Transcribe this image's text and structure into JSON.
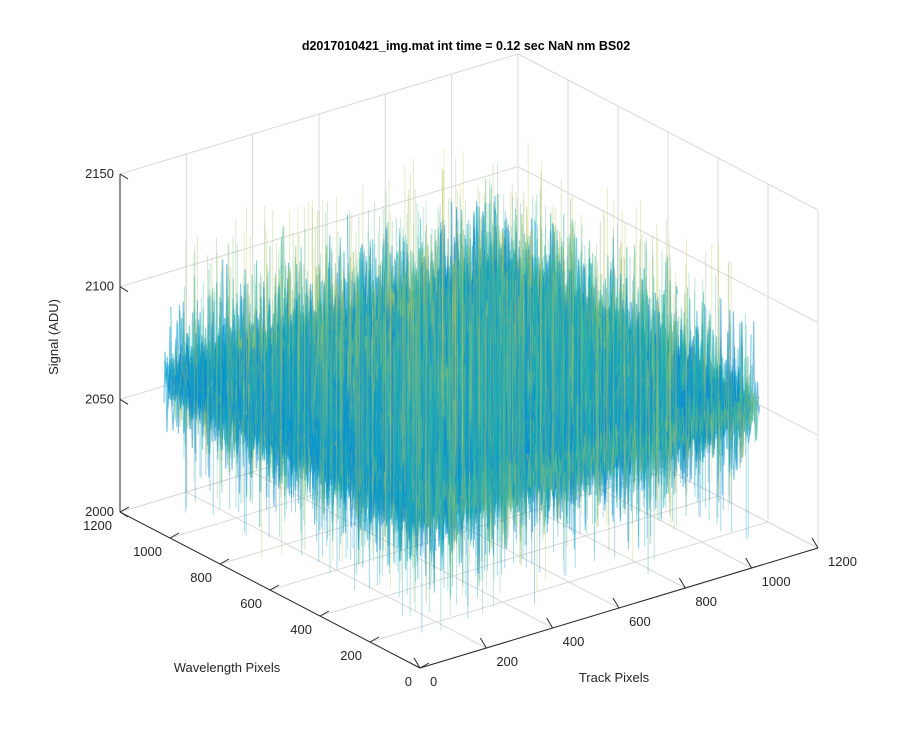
{
  "chart_data": {
    "type": "surface",
    "title": "d2017010421_img.mat int time = 0.12 sec  NaN nm BS02",
    "xlabel": "Track Pixels",
    "ylabel": "Wavelength Pixels",
    "zlabel": "Signal (ADU)",
    "xlim": [
      0,
      1200
    ],
    "ylim": [
      0,
      1200
    ],
    "zlim": [
      2000,
      2150
    ],
    "xticks": [
      "0",
      "200",
      "400",
      "600",
      "800",
      "1000",
      "1200"
    ],
    "yticks": [
      "0",
      "200",
      "400",
      "600",
      "800",
      "1000",
      "1200"
    ],
    "zticks": [
      "2000",
      "2050",
      "2100",
      "2150"
    ],
    "grid": true,
    "colormap": "parula",
    "data_extent": {
      "x": [
        0,
        1024
      ],
      "y": [
        0,
        1024
      ]
    },
    "signal_range_approx": [
      2025,
      2140
    ],
    "colors": {
      "low": "#0d6ad8",
      "mid": "#1ea9c7",
      "high": "#ecd23c"
    }
  }
}
